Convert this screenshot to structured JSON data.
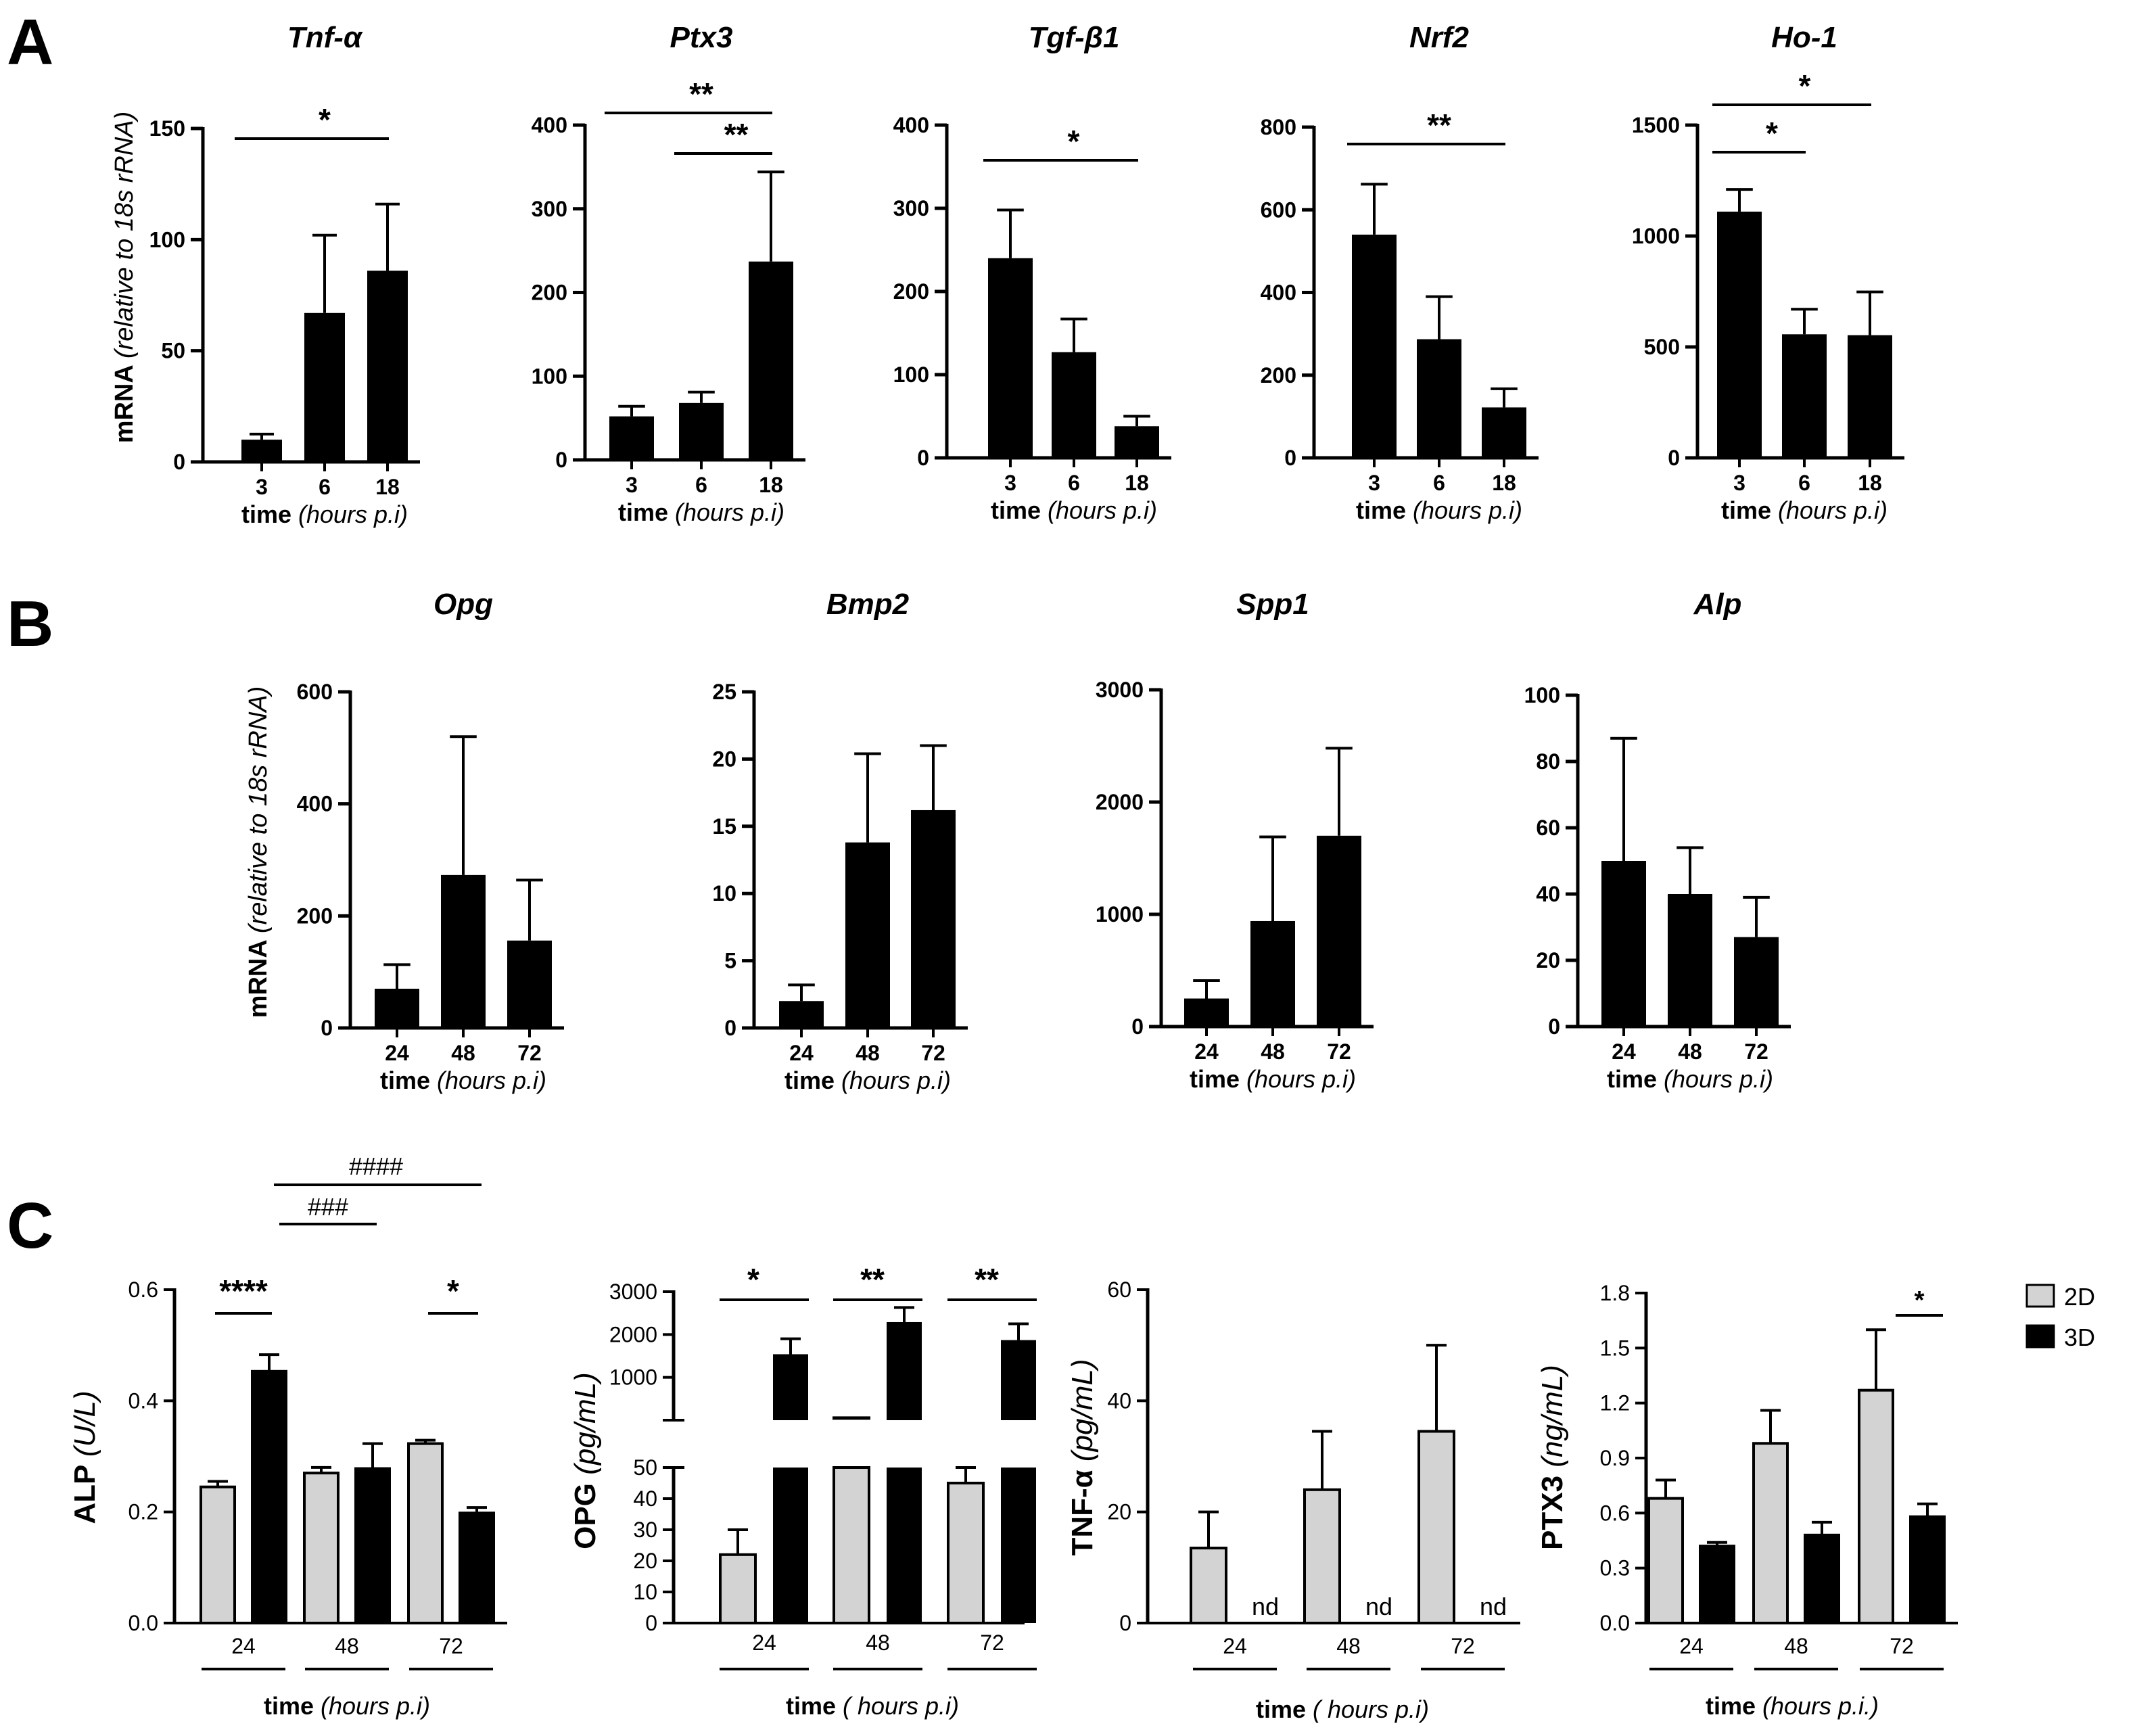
{
  "panels": {
    "A": "A",
    "B": "B",
    "C": "C"
  },
  "common": {
    "mrna_ylabel_main": "mRNA ",
    "mrna_ylabel_italic": "(relative to 18s rRNA)",
    "time_label_main": "time ",
    "time_label_italic_A": "(hours p.i)",
    "time_label_italic_C2": "( hours p.i)",
    "time_label_italic_C4": "(hours p.i.)",
    "nd": "nd"
  },
  "legend": {
    "items": [
      {
        "label": "2D",
        "color": "#d3d3d3"
      },
      {
        "label": "3D",
        "color": "#000000"
      }
    ]
  },
  "chart_data": [
    {
      "id": "A1",
      "type": "bar",
      "title": "Tnf-α",
      "categories": [
        "3",
        "6",
        "18"
      ],
      "values": [
        10,
        67,
        86
      ],
      "errors": [
        2.5,
        35,
        30
      ],
      "ylim": [
        0,
        150
      ],
      "yticks": [
        0,
        50,
        100,
        150
      ],
      "ylabel": "mRNA (relative to 18s rRNA)",
      "xlabel": "time (hours p.i)",
      "significance": [
        {
          "from": 0,
          "to": 2,
          "label": "*"
        }
      ]
    },
    {
      "id": "A2",
      "type": "bar",
      "title": "Ptx3",
      "categories": [
        "3",
        "6",
        "18"
      ],
      "values": [
        52,
        68,
        237
      ],
      "errors": [
        12,
        13,
        107
      ],
      "ylim": [
        0,
        400
      ],
      "yticks": [
        0,
        100,
        200,
        300,
        400
      ],
      "xlabel": "time (hours p.i)",
      "significance": [
        {
          "from": 0,
          "to": 2,
          "label": "**"
        },
        {
          "from": 1,
          "to": 2,
          "label": "**"
        }
      ]
    },
    {
      "id": "A3",
      "type": "bar",
      "title": "Tgf-β1",
      "categories": [
        "3",
        "6",
        "18"
      ],
      "values": [
        240,
        127,
        38
      ],
      "errors": [
        58,
        40,
        12
      ],
      "ylim": [
        0,
        400
      ],
      "yticks": [
        0,
        100,
        200,
        300,
        400
      ],
      "xlabel": "time (hours p.i)",
      "significance": [
        {
          "from": 0,
          "to": 2,
          "label": "*"
        }
      ]
    },
    {
      "id": "A4",
      "type": "bar",
      "title": "Nrf2",
      "categories": [
        "3",
        "6",
        "18"
      ],
      "values": [
        540,
        287,
        122
      ],
      "errors": [
        122,
        103,
        45
      ],
      "ylim": [
        0,
        800
      ],
      "yticks": [
        0,
        200,
        400,
        600,
        800
      ],
      "xlabel": "time (hours p.i)",
      "significance": [
        {
          "from": 0,
          "to": 2,
          "label": "**"
        }
      ]
    },
    {
      "id": "A5",
      "type": "bar",
      "title": "Ho-1",
      "categories": [
        "3",
        "6",
        "18"
      ],
      "values": [
        1110,
        557,
        553
      ],
      "errors": [
        100,
        113,
        195
      ],
      "ylim": [
        0,
        1500
      ],
      "yticks": [
        0,
        500,
        1000,
        1500
      ],
      "xlabel": "time (hours p.i)",
      "significance": [
        {
          "from": 0,
          "to": 2,
          "label": "*"
        },
        {
          "from": 0,
          "to": 1,
          "label": "*"
        }
      ]
    },
    {
      "id": "B1",
      "type": "bar",
      "title": "Opg",
      "categories": [
        "24",
        "48",
        "72"
      ],
      "values": [
        70,
        273,
        156
      ],
      "errors": [
        43,
        247,
        108
      ],
      "ylim": [
        0,
        600
      ],
      "yticks": [
        0,
        200,
        400,
        600
      ],
      "ylabel": "mRNA (relative to 18s rRNA)",
      "xlabel": "time (hours p.i)"
    },
    {
      "id": "B2",
      "type": "bar",
      "title": "Bmp2",
      "categories": [
        "24",
        "48",
        "72"
      ],
      "values": [
        2.0,
        13.8,
        16.2
      ],
      "errors": [
        1.2,
        6.6,
        4.8
      ],
      "ylim": [
        0,
        25
      ],
      "yticks": [
        0,
        5,
        10,
        15,
        20,
        25
      ],
      "xlabel": "time (hours p.i)"
    },
    {
      "id": "B3",
      "type": "bar",
      "title": "Spp1",
      "categories": [
        "24",
        "48",
        "72"
      ],
      "values": [
        250,
        940,
        1700
      ],
      "errors": [
        160,
        750,
        780
      ],
      "ylim": [
        0,
        3000
      ],
      "yticks": [
        0,
        1000,
        2000,
        3000
      ],
      "xlabel": "time (hours p.i)"
    },
    {
      "id": "B4",
      "type": "bar",
      "title": "Alp",
      "categories": [
        "24",
        "48",
        "72"
      ],
      "values": [
        50,
        40,
        27
      ],
      "errors": [
        37,
        14,
        12
      ],
      "ylim": [
        0,
        100
      ],
      "yticks": [
        0,
        20,
        40,
        60,
        80,
        100
      ],
      "xlabel": "time (hours p.i)"
    },
    {
      "id": "C1",
      "type": "bar",
      "ylabel": "ALP (U/L)",
      "xlabel": "time (hours p.i)",
      "categories": [
        "24",
        "48",
        "72"
      ],
      "series": [
        {
          "name": "2D",
          "values": [
            0.245,
            0.27,
            0.323
          ],
          "errors": [
            0.01,
            0.01,
            0.006
          ]
        },
        {
          "name": "3D",
          "values": [
            0.453,
            0.278,
            0.198
          ],
          "errors": [
            0.03,
            0.045,
            0.01
          ]
        }
      ],
      "ylim": [
        0,
        0.6
      ],
      "yticks": [
        "0.0",
        "0.2",
        "0.4",
        "0.6"
      ],
      "significance": [
        {
          "group": 0,
          "label": "****"
        },
        {
          "group": 2,
          "label": "*"
        }
      ],
      "hash_annotations": [
        {
          "from_group": 0,
          "to_group": 1,
          "label": "###"
        },
        {
          "from_group": 0,
          "to_group": 2,
          "label": "####"
        }
      ]
    },
    {
      "id": "C2",
      "type": "bar",
      "ylabel": "OPG (pg/mL)",
      "xlabel": "time ( hours p.i)",
      "categories": [
        "24",
        "48",
        "72"
      ],
      "series": [
        {
          "name": "2D",
          "values": [
            22,
            50,
            45
          ],
          "errors": [
            8,
            0,
            5
          ]
        },
        {
          "name": "3D",
          "values": [
            1540,
            2290,
            1870
          ],
          "errors": [
            360,
            340,
            380
          ]
        }
      ],
      "axis_break": {
        "lower": [
          0,
          50
        ],
        "upper": [
          0,
          3000
        ]
      },
      "lower_yticks": [
        0,
        10,
        20,
        30,
        40,
        50
      ],
      "upper_yticks": [
        1000,
        2000,
        3000
      ],
      "significance": [
        {
          "group": 0,
          "label": "*"
        },
        {
          "group": 1,
          "label": "**"
        },
        {
          "group": 2,
          "label": "**"
        }
      ]
    },
    {
      "id": "C3",
      "type": "bar",
      "ylabel": "TNF-α (pg/mL)",
      "xlabel": "time ( hours p.i)",
      "categories": [
        "24",
        "48",
        "72"
      ],
      "series": [
        {
          "name": "2D",
          "values": [
            13.5,
            24,
            34.5
          ],
          "errors": [
            6.5,
            10.5,
            15.5
          ]
        },
        {
          "name": "3D",
          "values": [
            null,
            null,
            null
          ],
          "note": "nd"
        }
      ],
      "ylim": [
        0,
        60
      ],
      "yticks": [
        0,
        20,
        40,
        60
      ]
    },
    {
      "id": "C4",
      "type": "bar",
      "ylabel": "PTX3 (ng/mL)",
      "xlabel": "time (hours p.i.)",
      "categories": [
        "24",
        "48",
        "72"
      ],
      "series": [
        {
          "name": "2D",
          "values": [
            0.68,
            0.98,
            1.27
          ],
          "errors": [
            0.1,
            0.18,
            0.33
          ]
        },
        {
          "name": "3D",
          "values": [
            0.42,
            0.48,
            0.58
          ],
          "errors": [
            0.02,
            0.07,
            0.07
          ]
        }
      ],
      "ylim": [
        0,
        1.8
      ],
      "yticks": [
        "0.0",
        "0.3",
        "0.6",
        "0.9",
        "1.2",
        "1.5",
        "1.8"
      ],
      "significance": [
        {
          "group": 2,
          "label": "*"
        }
      ]
    }
  ]
}
